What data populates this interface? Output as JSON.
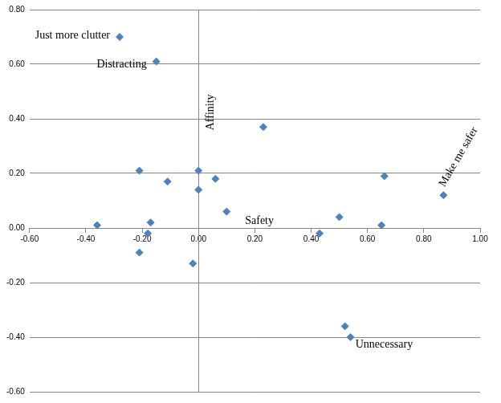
{
  "chart_data": {
    "type": "scatter",
    "x_label": "Safety",
    "y_label": "Affinity",
    "x": [
      -0.28,
      -0.15,
      0.23,
      -0.21,
      -0.11,
      0.0,
      0.0,
      0.06,
      0.66,
      0.87,
      -0.36,
      -0.17,
      -0.18,
      -0.21,
      -0.02,
      0.1,
      0.5,
      0.43,
      0.65,
      0.52,
      0.54
    ],
    "values": [
      0.7,
      0.61,
      0.37,
      0.21,
      0.17,
      0.21,
      0.14,
      0.18,
      0.19,
      0.12,
      0.01,
      0.02,
      -0.02,
      -0.09,
      -0.13,
      0.06,
      0.04,
      -0.02,
      0.01,
      -0.36,
      -0.4
    ],
    "point_labels": [
      "Just more clutter",
      "Distracting",
      null,
      null,
      null,
      null,
      null,
      null,
      null,
      "Make me safer",
      null,
      null,
      null,
      null,
      null,
      null,
      null,
      null,
      null,
      null,
      "Unnecessary"
    ],
    "color": "#4f81bd",
    "marker": "diamond",
    "xlim": [
      -0.6,
      1.0
    ],
    "ylim": [
      -0.6,
      0.8
    ],
    "xticks": [
      {
        "value": -0.6,
        "label": "-0.60"
      },
      {
        "value": -0.4,
        "label": "-0.40"
      },
      {
        "value": -0.2,
        "label": "-0.20"
      },
      {
        "value": 0,
        "label": "0.00"
      },
      {
        "value": 0.2,
        "label": "0.20"
      },
      {
        "value": 0.4,
        "label": "0.40"
      },
      {
        "value": 0.6,
        "label": "0.60"
      },
      {
        "value": 0.8,
        "label": "0.80"
      },
      {
        "value": 1.0,
        "label": "1.00"
      }
    ],
    "yticks": [
      {
        "value": -0.6,
        "label": "-0.60"
      },
      {
        "value": -0.4,
        "label": "-0.40"
      },
      {
        "value": -0.2,
        "label": "-0.20"
      },
      {
        "value": 0,
        "label": "0.00"
      },
      {
        "value": 0.2,
        "label": "0.20"
      },
      {
        "value": 0.4,
        "label": "0.40"
      },
      {
        "value": 0.6,
        "label": "0.60"
      },
      {
        "value": 0.8,
        "label": "0.80"
      }
    ],
    "grid": "y"
  }
}
